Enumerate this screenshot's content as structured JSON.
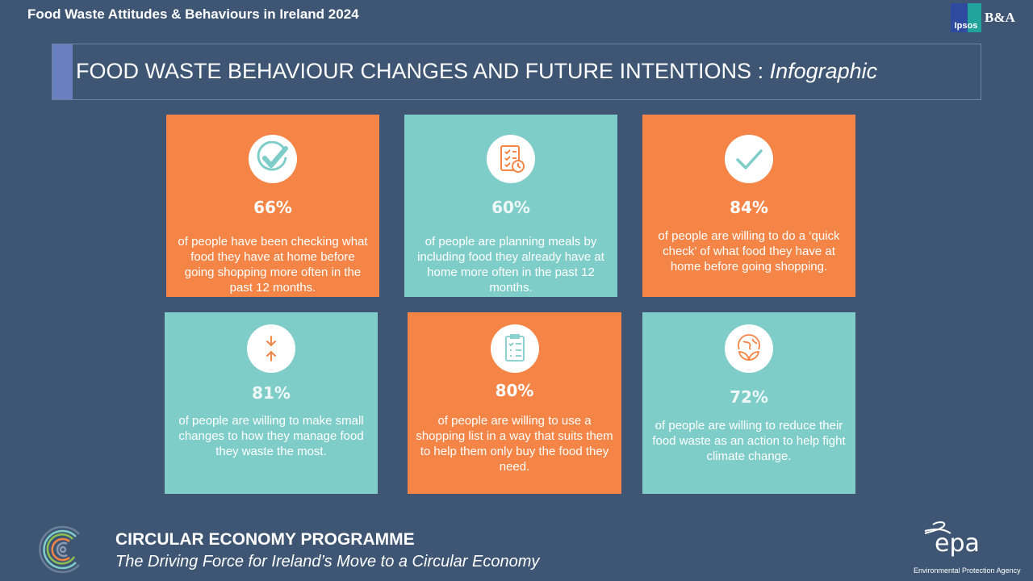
{
  "header": {
    "title": "Food Waste Attitudes & Behaviours in Ireland 2024",
    "logo_ipsos": "Ipsos",
    "logo_ba": "B&A"
  },
  "section": {
    "title": "FOOD WASTE BEHAVIOUR CHANGES AND FUTURE INTENTIONS : ",
    "title_italic": "Infographic"
  },
  "colors": {
    "background": "#3e5673",
    "orange": "#f58546",
    "teal": "#7fcdc9"
  },
  "cards": [
    {
      "icon": "check-circle-icon",
      "value": "66%",
      "text": "of people have been checking what food they have at home before going shopping more often in the past 12 months."
    },
    {
      "icon": "checklist-clock-icon",
      "value": "60%",
      "text": "of people are planning meals by including food they already have at home more often in the past 12 months."
    },
    {
      "icon": "checkmark-icon",
      "value": "84%",
      "text": "of people are willing to do a ‘quick check’ of what food they have at home before going shopping."
    },
    {
      "icon": "arrows-converge-icon",
      "value": "81%",
      "text": "of people are willing to make small changes to how they manage food they waste the most."
    },
    {
      "icon": "clipboard-list-icon",
      "value": "80%",
      "text": "of people are willing to use a shopping list in a way that suits them to help them only buy the food they need."
    },
    {
      "icon": "globe-leaves-icon",
      "value": "72%",
      "text": "of people are willing to reduce their food waste as an action to help fight climate change."
    }
  ],
  "footer": {
    "programme": "CIRCULAR ECONOMY PROGRAMME",
    "tagline": "The Driving Force for Ireland’s Move to a Circular Economy",
    "epa_logo": "epa",
    "epa_sub": "Environmental Protection Agency"
  }
}
